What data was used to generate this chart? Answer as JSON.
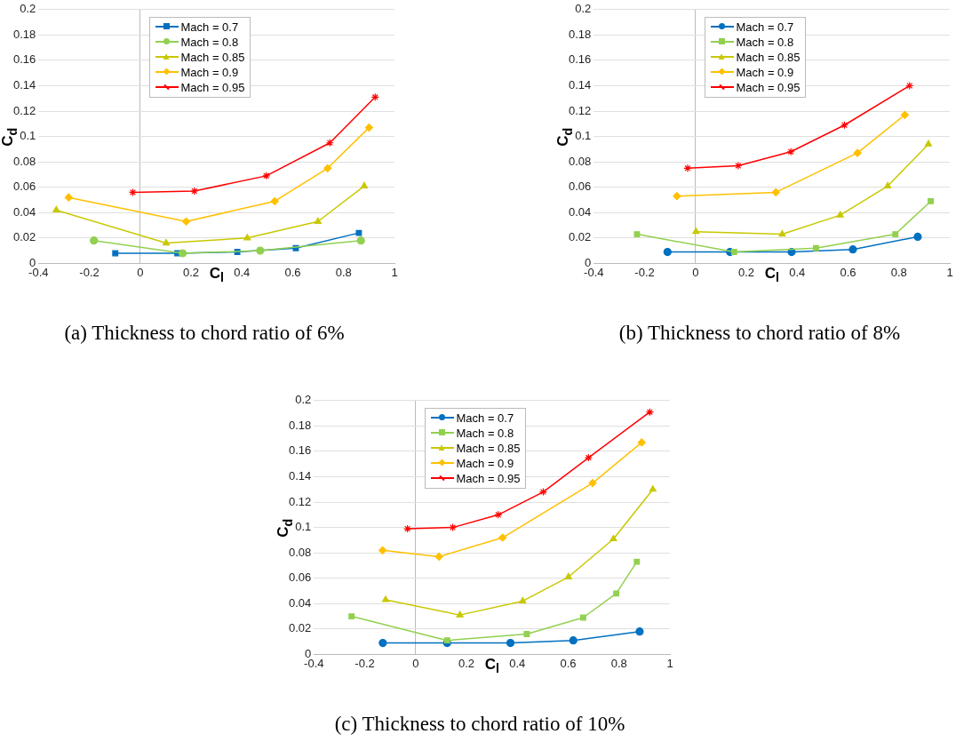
{
  "chart_data": [
    {
      "type": "line",
      "title": "(a) Thickness to chord ratio of 6%",
      "xlabel": "C$_{l}$",
      "ylabel": "C$_{d}$",
      "xlim": [
        -0.4,
        1
      ],
      "xticks": [
        -0.4,
        -0.2,
        0,
        0.2,
        0.4,
        0.6,
        0.8,
        1
      ],
      "ylim": [
        0,
        0.2
      ],
      "yticks": [
        0,
        0.02,
        0.04,
        0.06,
        0.08,
        0.1,
        0.12,
        0.14,
        0.16,
        0.18,
        0.2
      ],
      "grid": "y",
      "legend": "top left",
      "series": [
        {
          "name": "Mach = 0.7",
          "color": "#0070c0",
          "marker": "square",
          "x": [
            -0.098,
            0.146,
            0.382,
            0.612,
            0.86
          ],
          "values": [
            0.008,
            0.008,
            0.009,
            0.012,
            0.024
          ]
        },
        {
          "name": "Mach = 0.8",
          "color": "#92d050",
          "marker": "circle",
          "x": [
            -0.182,
            0.167,
            0.472,
            0.868
          ],
          "values": [
            0.018,
            0.008,
            0.01,
            0.018
          ]
        },
        {
          "name": "Mach = 0.85",
          "color": "#c8c800",
          "marker": "triangle",
          "x": [
            -0.33,
            0.102,
            0.421,
            0.699,
            0.881
          ],
          "values": [
            0.042,
            0.016,
            0.02,
            0.033,
            0.061
          ]
        },
        {
          "name": "Mach = 0.9",
          "color": "#ffc000",
          "marker": "diamond",
          "x": [
            -0.281,
            0.181,
            0.529,
            0.737,
            0.9
          ],
          "values": [
            0.052,
            0.033,
            0.049,
            0.075,
            0.107
          ]
        },
        {
          "name": "Mach = 0.95",
          "color": "#ff0000",
          "marker": "cross",
          "x": [
            -0.029,
            0.213,
            0.496,
            0.746,
            0.924
          ],
          "values": [
            0.056,
            0.057,
            0.069,
            0.095,
            0.131
          ]
        }
      ]
    },
    {
      "type": "line",
      "title": "(b) Thickness to chord ratio of 8%",
      "xlabel": "C$_{l}$",
      "ylabel": "C$_{d}$",
      "xlim": [
        -0.4,
        1
      ],
      "xticks": [
        -0.4,
        -0.2,
        0,
        0.2,
        0.4,
        0.6,
        0.8,
        1
      ],
      "ylim": [
        0,
        0.2
      ],
      "yticks": [
        0,
        0.02,
        0.04,
        0.06,
        0.08,
        0.1,
        0.12,
        0.14,
        0.16,
        0.18,
        0.2
      ],
      "grid": "y",
      "legend": "top left",
      "series": [
        {
          "name": "Mach = 0.7",
          "color": "#0070c0",
          "marker": "circle",
          "x": [
            -0.11,
            0.136,
            0.378,
            0.619,
            0.874
          ],
          "values": [
            0.009,
            0.009,
            0.009,
            0.011,
            0.021
          ]
        },
        {
          "name": "Mach = 0.8",
          "color": "#92d050",
          "marker": "square",
          "x": [
            -0.23,
            0.152,
            0.474,
            0.786,
            0.925
          ],
          "values": [
            0.023,
            0.009,
            0.012,
            0.023,
            0.049
          ]
        },
        {
          "name": "Mach = 0.85",
          "color": "#c8c800",
          "marker": "triangle",
          "x": [
            0.002,
            0.341,
            0.569,
            0.756,
            0.916
          ],
          "values": [
            0.025,
            0.023,
            0.038,
            0.061,
            0.094
          ]
        },
        {
          "name": "Mach = 0.9",
          "color": "#ffc000",
          "marker": "diamond",
          "x": [
            -0.073,
            0.316,
            0.637,
            0.823
          ],
          "values": [
            0.053,
            0.056,
            0.087,
            0.117
          ]
        },
        {
          "name": "Mach = 0.95",
          "color": "#ff0000",
          "marker": "cross",
          "x": [
            -0.031,
            0.168,
            0.375,
            0.586,
            0.842
          ],
          "values": [
            0.075,
            0.077,
            0.088,
            0.109,
            0.14
          ]
        }
      ]
    },
    {
      "type": "line",
      "title": "(c) Thickness to chord ratio of 10%",
      "xlabel": "C$_{l}$",
      "ylabel": "C$_{d}$",
      "xlim": [
        -0.4,
        1
      ],
      "xticks": [
        -0.4,
        -0.2,
        0,
        0.2,
        0.4,
        0.6,
        0.8,
        1
      ],
      "ylim": [
        0,
        0.2
      ],
      "yticks": [
        0,
        0.02,
        0.04,
        0.06,
        0.08,
        0.1,
        0.12,
        0.14,
        0.16,
        0.18,
        0.2
      ],
      "grid": "y",
      "legend": "top left",
      "series": [
        {
          "name": "Mach = 0.7",
          "color": "#0070c0",
          "marker": "circle",
          "x": [
            -0.129,
            0.124,
            0.373,
            0.62,
            0.881
          ],
          "values": [
            0.009,
            0.009,
            0.009,
            0.011,
            0.018
          ]
        },
        {
          "name": "Mach = 0.8",
          "color": "#92d050",
          "marker": "square",
          "x": [
            -0.252,
            0.124,
            0.437,
            0.659,
            0.789,
            0.87
          ],
          "values": [
            0.03,
            0.011,
            0.016,
            0.029,
            0.048,
            0.073
          ]
        },
        {
          "name": "Mach = 0.85",
          "color": "#c8c800",
          "marker": "triangle",
          "x": [
            -0.118,
            0.174,
            0.421,
            0.601,
            0.778,
            0.933
          ],
          "values": [
            0.043,
            0.031,
            0.042,
            0.061,
            0.091,
            0.13
          ]
        },
        {
          "name": "Mach = 0.9",
          "color": "#ffc000",
          "marker": "diamond",
          "x": [
            -0.13,
            0.092,
            0.342,
            0.696,
            0.889
          ],
          "values": [
            0.082,
            0.077,
            0.092,
            0.135,
            0.167
          ]
        },
        {
          "name": "Mach = 0.95",
          "color": "#ff0000",
          "marker": "cross",
          "x": [
            -0.032,
            0.146,
            0.325,
            0.502,
            0.68,
            0.921
          ],
          "values": [
            0.099,
            0.1,
            0.11,
            0.128,
            0.155,
            0.191
          ]
        }
      ]
    }
  ]
}
